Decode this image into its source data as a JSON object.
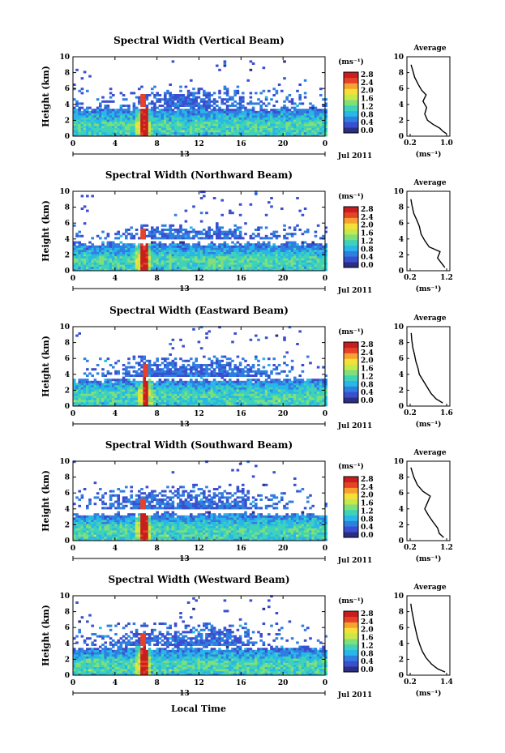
{
  "figure": {
    "xlabel": "Local Time",
    "date_label": "Jul 2011",
    "day_marker": "13"
  },
  "colors": {
    "scale": [
      "#2a2f84",
      "#3a4fcf",
      "#2f7fe0",
      "#28b7e8",
      "#3fd2b9",
      "#7fe07a",
      "#c8e84a",
      "#f5e03a",
      "#f7a12e",
      "#e8412a",
      "#c81e1e"
    ]
  },
  "chart_data": [
    {
      "type": "heatmap",
      "title": "Spectral Width (Vertical Beam)",
      "ylabel": "Height (km)",
      "x_ticks": [
        "0",
        "4",
        "8",
        "12",
        "16",
        "20",
        "0"
      ],
      "y_ticks": [
        "0",
        "2",
        "4",
        "6",
        "8",
        "10"
      ],
      "xlim": [
        0,
        24
      ],
      "ylim": [
        0,
        10
      ],
      "colorbar": {
        "unit": "(ms⁻¹)",
        "ticks": [
          "0.0",
          "0.4",
          "0.8",
          "1.2",
          "1.6",
          "2.0",
          "2.4",
          "2.8"
        ]
      },
      "layer_top_km": 3.4,
      "cloud_km": [
        4.0,
        6.2
      ],
      "spike_hour": 6.6,
      "average": {
        "title": "Average",
        "xlabel": "(ms⁻¹)",
        "x_ticks": [
          "0.2",
          "1.0"
        ],
        "xlim": [
          0.2,
          1.0
        ],
        "profile": [
          [
            1.0,
            0.3
          ],
          [
            0.92,
            0.6
          ],
          [
            0.85,
            1.0
          ],
          [
            0.7,
            1.5
          ],
          [
            0.58,
            2.0
          ],
          [
            0.52,
            2.8
          ],
          [
            0.56,
            3.6
          ],
          [
            0.48,
            4.4
          ],
          [
            0.55,
            5.2
          ],
          [
            0.45,
            5.8
          ],
          [
            0.38,
            6.5
          ],
          [
            0.3,
            7.4
          ],
          [
            0.26,
            8.2
          ],
          [
            0.22,
            9.0
          ]
        ]
      }
    },
    {
      "type": "heatmap",
      "title": "Spectral Width (Northward Beam)",
      "ylabel": "Height (km)",
      "x_ticks": [
        "0",
        "4",
        "8",
        "12",
        "16",
        "20",
        "0"
      ],
      "y_ticks": [
        "0",
        "2",
        "4",
        "6",
        "8",
        "10"
      ],
      "xlim": [
        0,
        24
      ],
      "ylim": [
        0,
        10
      ],
      "colorbar": {
        "unit": "(ms⁻¹)",
        "ticks": [
          "0.0",
          "0.4",
          "0.8",
          "1.2",
          "1.6",
          "2.0",
          "2.4",
          "2.8"
        ]
      },
      "layer_top_km": 3.3,
      "cloud_km": [
        4.2,
        5.8
      ],
      "spike_hour": 6.6,
      "average": {
        "title": "Average",
        "xlabel": "(ms⁻¹)",
        "x_ticks": [
          "0.2",
          "1.2"
        ],
        "xlim": [
          0.2,
          1.2
        ],
        "profile": [
          [
            1.15,
            0.4
          ],
          [
            1.05,
            1.0
          ],
          [
            0.95,
            1.6
          ],
          [
            1.02,
            2.4
          ],
          [
            0.72,
            3.0
          ],
          [
            0.6,
            3.8
          ],
          [
            0.5,
            4.6
          ],
          [
            0.45,
            5.6
          ],
          [
            0.38,
            6.4
          ],
          [
            0.3,
            7.2
          ],
          [
            0.25,
            8.2
          ],
          [
            0.22,
            9.0
          ]
        ]
      }
    },
    {
      "type": "heatmap",
      "title": "Spectral Width (Eastward Beam)",
      "ylabel": "Height (km)",
      "x_ticks": [
        "0",
        "4",
        "8",
        "12",
        "16",
        "20",
        "0"
      ],
      "y_ticks": [
        "0",
        "2",
        "4",
        "6",
        "8",
        "10"
      ],
      "xlim": [
        0,
        24
      ],
      "ylim": [
        0,
        10
      ],
      "colorbar": {
        "unit": "(ms⁻¹)",
        "ticks": [
          "0.0",
          "0.4",
          "0.8",
          "1.2",
          "1.6",
          "2.0",
          "2.4",
          "2.8"
        ]
      },
      "layer_top_km": 3.2,
      "cloud_km": [
        4.0,
        6.2
      ],
      "spike_hour": 6.8,
      "average": {
        "title": "Average",
        "xlabel": "(ms⁻¹)",
        "x_ticks": [
          "0.2",
          "1.6"
        ],
        "xlim": [
          0.2,
          1.6
        ],
        "profile": [
          [
            1.45,
            0.4
          ],
          [
            1.2,
            0.9
          ],
          [
            1.0,
            1.6
          ],
          [
            0.85,
            2.4
          ],
          [
            0.7,
            3.2
          ],
          [
            0.55,
            4.0
          ],
          [
            0.5,
            4.8
          ],
          [
            0.42,
            5.6
          ],
          [
            0.36,
            6.6
          ],
          [
            0.3,
            7.4
          ],
          [
            0.26,
            8.4
          ],
          [
            0.24,
            9.2
          ]
        ]
      }
    },
    {
      "type": "heatmap",
      "title": "Spectral Width (Southward Beam)",
      "ylabel": "Height (km)",
      "x_ticks": [
        "0",
        "4",
        "8",
        "12",
        "16",
        "20",
        "0"
      ],
      "y_ticks": [
        "0",
        "2",
        "4",
        "6",
        "8",
        "10"
      ],
      "xlim": [
        0,
        24
      ],
      "ylim": [
        0,
        10
      ],
      "colorbar": {
        "unit": "(ms⁻¹)",
        "ticks": [
          "0.0",
          "0.4",
          "0.8",
          "1.2",
          "1.6",
          "2.0",
          "2.4",
          "2.8"
        ]
      },
      "layer_top_km": 3.2,
      "cloud_km": [
        4.2,
        6.8
      ],
      "spike_hour": 6.6,
      "average": {
        "title": "Average",
        "xlabel": "(ms⁻¹)",
        "x_ticks": [
          "0.2",
          "1.2"
        ],
        "xlim": [
          0.2,
          1.2
        ],
        "profile": [
          [
            1.12,
            0.4
          ],
          [
            1.0,
            0.9
          ],
          [
            0.95,
            1.6
          ],
          [
            0.82,
            2.4
          ],
          [
            0.7,
            3.2
          ],
          [
            0.6,
            4.0
          ],
          [
            0.75,
            5.6
          ],
          [
            0.55,
            6.2
          ],
          [
            0.4,
            7.0
          ],
          [
            0.3,
            8.0
          ],
          [
            0.22,
            9.2
          ]
        ]
      }
    },
    {
      "type": "heatmap",
      "title": "Spectral Width (Westward Beam)",
      "ylabel": "Height (km)",
      "x_ticks": [
        "0",
        "4",
        "8",
        "12",
        "16",
        "20",
        "0"
      ],
      "y_ticks": [
        "0",
        "2",
        "4",
        "6",
        "8",
        "10"
      ],
      "xlim": [
        0,
        24
      ],
      "ylim": [
        0,
        10
      ],
      "colorbar": {
        "unit": "(ms⁻¹)",
        "ticks": [
          "0.0",
          "0.4",
          "0.8",
          "1.2",
          "1.6",
          "2.0",
          "2.4",
          "2.8"
        ]
      },
      "layer_top_km": 3.3,
      "cloud_km": [
        4.0,
        6.6
      ],
      "spike_hour": 6.6,
      "average": {
        "title": "Average",
        "xlabel": "(ms⁻¹)",
        "x_ticks": [
          "0.2",
          "1.4"
        ],
        "xlim": [
          0.2,
          1.4
        ],
        "profile": [
          [
            1.35,
            0.4
          ],
          [
            1.1,
            0.8
          ],
          [
            0.9,
            1.4
          ],
          [
            0.72,
            2.2
          ],
          [
            0.6,
            3.0
          ],
          [
            0.52,
            3.8
          ],
          [
            0.45,
            4.6
          ],
          [
            0.4,
            5.4
          ],
          [
            0.34,
            6.4
          ],
          [
            0.3,
            7.2
          ],
          [
            0.25,
            8.2
          ],
          [
            0.22,
            9.0
          ]
        ]
      }
    }
  ]
}
